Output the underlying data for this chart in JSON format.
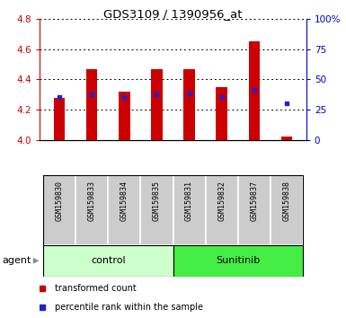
{
  "title": "GDS3109 / 1390956_at",
  "samples": [
    "GSM159830",
    "GSM159833",
    "GSM159834",
    "GSM159835",
    "GSM159831",
    "GSM159832",
    "GSM159837",
    "GSM159838"
  ],
  "red_values": [
    4.28,
    4.47,
    4.32,
    4.47,
    4.47,
    4.35,
    4.65,
    4.02
  ],
  "blue_values": [
    4.285,
    4.3,
    4.285,
    4.3,
    4.305,
    4.285,
    4.33,
    4.245
  ],
  "base_value": 4.0,
  "ylim": [
    4.0,
    4.8
  ],
  "yticks_left": [
    4.0,
    4.2,
    4.4,
    4.6,
    4.8
  ],
  "yticks_right": [
    0,
    25,
    50,
    75,
    100
  ],
  "ytick_right_labels": [
    "0",
    "25",
    "50",
    "75",
    "100%"
  ],
  "bar_color": "#cc0000",
  "dot_color": "#2222cc",
  "control_label": "control",
  "sunitinib_label": "Sunitinib",
  "agent_label": "agent",
  "control_bg": "#ccffcc",
  "sunitinib_bg": "#44ee44",
  "sample_bg": "#cccccc",
  "legend_red_label": "transformed count",
  "legend_blue_label": "percentile rank within the sample",
  "left_axis_color": "#cc0000",
  "right_axis_color": "#0000cc",
  "bar_width": 0.35
}
